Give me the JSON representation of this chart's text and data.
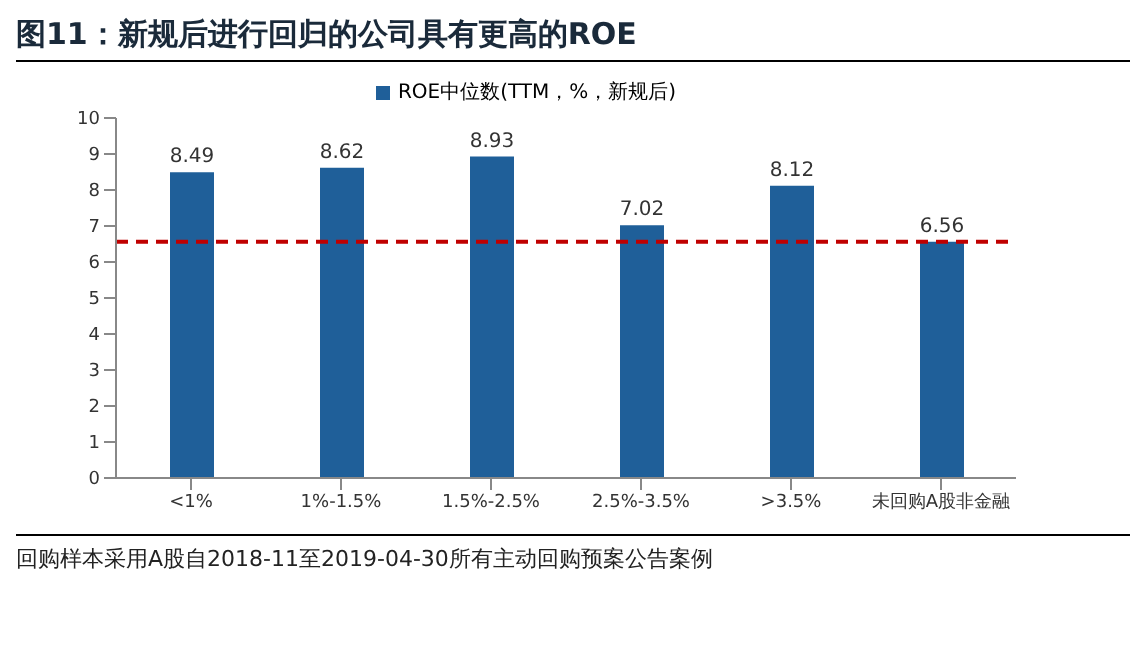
{
  "chart_data": {
    "type": "bar",
    "title": "图11：新规后进行回归的公司具有更高的ROE",
    "categories": [
      "<1%",
      "1%-1.5%",
      "1.5%-2.5%",
      "2.5%-3.5%",
      ">3.5%",
      "未回购A股非金融"
    ],
    "series": [
      {
        "name": "ROE中位数(TTM，%，新规后)",
        "color": "#1f5f99",
        "values": [
          8.49,
          8.62,
          8.93,
          7.02,
          8.12,
          6.56
        ]
      }
    ],
    "ylim": [
      0,
      10
    ],
    "yticks": [
      0,
      1,
      2,
      3,
      4,
      5,
      6,
      7,
      8,
      9,
      10
    ],
    "grid": false,
    "legend": "top",
    "data_labels": true,
    "ref_lines": [
      {
        "axis": "y",
        "value": 6.56,
        "color": "#c00000",
        "line_style": "dashed"
      }
    ],
    "annotations": [
      "回购样本采用A股自2018-11至2019-04-30所有主动回购预案公告案例"
    ]
  }
}
